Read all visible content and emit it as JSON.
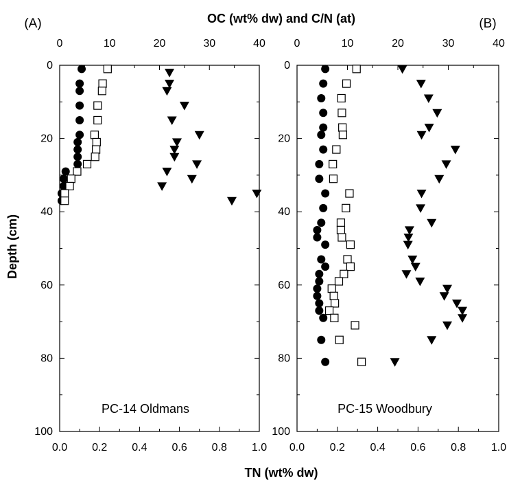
{
  "figure": {
    "top_axis_title": "OC (wt% dw) and C/N (at)",
    "bottom_axis_title": "TN (wt% dw)",
    "y_axis_title": "Depth (cm)"
  },
  "chart_data": [
    {
      "type": "scatter",
      "panel_label": "(A)",
      "site_label": "PC-14 Oldmans",
      "ylabel": "Depth (cm)",
      "ylim": [
        100,
        0
      ],
      "y_ticks": [
        0,
        20,
        40,
        60,
        80,
        100
      ],
      "bottom_axis": {
        "label": "TN (wt% dw)",
        "lim": [
          0,
          1
        ],
        "ticks": [
          "0.0",
          "0.2",
          "0.4",
          "0.6",
          "0.8",
          "1.0"
        ]
      },
      "top_axis": {
        "label": "OC (wt% dw) and C/N (at)",
        "lim": [
          0,
          40
        ],
        "ticks": [
          "0",
          "10",
          "20",
          "30",
          "40"
        ]
      },
      "series": [
        {
          "marker": "filled-circle",
          "axis": "bottom",
          "points": [
            [
              0.11,
              1
            ],
            [
              0.1,
              5
            ],
            [
              0.1,
              7
            ],
            [
              0.1,
              11
            ],
            [
              0.1,
              15
            ],
            [
              0.1,
              19
            ],
            [
              0.09,
              21
            ],
            [
              0.09,
              23
            ],
            [
              0.09,
              25
            ],
            [
              0.09,
              27
            ],
            [
              0.03,
              29
            ],
            [
              0.02,
              31
            ],
            [
              0.02,
              33
            ],
            [
              0.01,
              35
            ],
            [
              0.01,
              37
            ]
          ]
        },
        {
          "marker": "open-square",
          "axis": "top",
          "points": [
            [
              9.6,
              1
            ],
            [
              8.6,
              5
            ],
            [
              8.5,
              7
            ],
            [
              7.6,
              11
            ],
            [
              7.6,
              15
            ],
            [
              7.0,
              19
            ],
            [
              7.4,
              21
            ],
            [
              7.3,
              23
            ],
            [
              7.1,
              25
            ],
            [
              5.5,
              27
            ],
            [
              3.5,
              29
            ],
            [
              2.3,
              31
            ],
            [
              2.0,
              33
            ],
            [
              1.0,
              35
            ],
            [
              1.0,
              37
            ]
          ]
        },
        {
          "marker": "filled-triangle-down",
          "axis": "top",
          "points": [
            [
              22,
              2
            ],
            [
              22,
              5
            ],
            [
              21.5,
              7
            ],
            [
              25,
              11
            ],
            [
              22.5,
              15
            ],
            [
              28,
              19
            ],
            [
              23.5,
              21
            ],
            [
              23,
              23
            ],
            [
              23,
              25
            ],
            [
              27.5,
              27
            ],
            [
              21.5,
              29
            ],
            [
              26.5,
              31
            ],
            [
              20.5,
              33
            ],
            [
              39.5,
              35
            ],
            [
              34.5,
              37
            ]
          ]
        }
      ]
    },
    {
      "type": "scatter",
      "panel_label": "(B)",
      "site_label": "PC-15 Woodbury",
      "ylabel": "Depth (cm)",
      "ylim": [
        100,
        0
      ],
      "y_ticks": [
        0,
        20,
        40,
        60,
        80,
        100
      ],
      "bottom_axis": {
        "label": "TN (wt% dw)",
        "lim": [
          0,
          1
        ],
        "ticks": [
          "0.0",
          "0.2",
          "0.4",
          "0.6",
          "0.8",
          "1.0"
        ]
      },
      "top_axis": {
        "label": "OC (wt% dw) and C/N (at)",
        "lim": [
          0,
          40
        ],
        "ticks": [
          "0",
          "10",
          "20",
          "30",
          "40"
        ]
      },
      "series": [
        {
          "marker": "filled-circle",
          "axis": "bottom",
          "points": [
            [
              0.14,
              1
            ],
            [
              0.13,
              5
            ],
            [
              0.12,
              9
            ],
            [
              0.13,
              13
            ],
            [
              0.13,
              17
            ],
            [
              0.12,
              19
            ],
            [
              0.13,
              23
            ],
            [
              0.11,
              27
            ],
            [
              0.11,
              31
            ],
            [
              0.14,
              35
            ],
            [
              0.13,
              39
            ],
            [
              0.12,
              43
            ],
            [
              0.1,
              45
            ],
            [
              0.1,
              47
            ],
            [
              0.14,
              49
            ],
            [
              0.12,
              53
            ],
            [
              0.14,
              55
            ],
            [
              0.11,
              57
            ],
            [
              0.11,
              59
            ],
            [
              0.1,
              61
            ],
            [
              0.1,
              63
            ],
            [
              0.11,
              65
            ],
            [
              0.11,
              67
            ],
            [
              0.13,
              69
            ],
            [
              0.12,
              75
            ],
            [
              0.14,
              81
            ]
          ]
        },
        {
          "marker": "open-square",
          "axis": "top",
          "points": [
            [
              11.8,
              1
            ],
            [
              9.8,
              5
            ],
            [
              8.8,
              9
            ],
            [
              8.9,
              13
            ],
            [
              9.0,
              17
            ],
            [
              9.1,
              19
            ],
            [
              7.8,
              23
            ],
            [
              7.1,
              27
            ],
            [
              7.2,
              31
            ],
            [
              10.4,
              35
            ],
            [
              9.7,
              39
            ],
            [
              8.7,
              43
            ],
            [
              8.7,
              45
            ],
            [
              8.9,
              47
            ],
            [
              10.6,
              49
            ],
            [
              10.0,
              53
            ],
            [
              10.6,
              55
            ],
            [
              9.3,
              57
            ],
            [
              8.3,
              59
            ],
            [
              6.9,
              61
            ],
            [
              7.3,
              63
            ],
            [
              7.5,
              65
            ],
            [
              6.4,
              67
            ],
            [
              7.4,
              69
            ],
            [
              11.5,
              71
            ],
            [
              8.4,
              75
            ],
            [
              12.8,
              81
            ]
          ]
        },
        {
          "marker": "filled-triangle-down",
          "axis": "top",
          "points": [
            [
              20.9,
              1
            ],
            [
              24.6,
              5
            ],
            [
              26.1,
              9
            ],
            [
              27.8,
              13
            ],
            [
              26.2,
              17
            ],
            [
              24.7,
              19
            ],
            [
              31.4,
              23
            ],
            [
              29.6,
              27
            ],
            [
              28.2,
              31
            ],
            [
              24.7,
              35
            ],
            [
              24.5,
              39
            ],
            [
              26.7,
              43
            ],
            [
              22.3,
              45
            ],
            [
              22.1,
              47
            ],
            [
              22.0,
              49
            ],
            [
              22.9,
              53
            ],
            [
              23.5,
              55
            ],
            [
              21.7,
              57
            ],
            [
              24.4,
              59
            ],
            [
              29.8,
              61
            ],
            [
              29.2,
              63
            ],
            [
              31.7,
              65
            ],
            [
              32.8,
              67
            ],
            [
              32.8,
              69
            ],
            [
              29.8,
              71
            ],
            [
              26.7,
              75
            ],
            [
              19.4,
              81
            ]
          ]
        }
      ]
    }
  ]
}
